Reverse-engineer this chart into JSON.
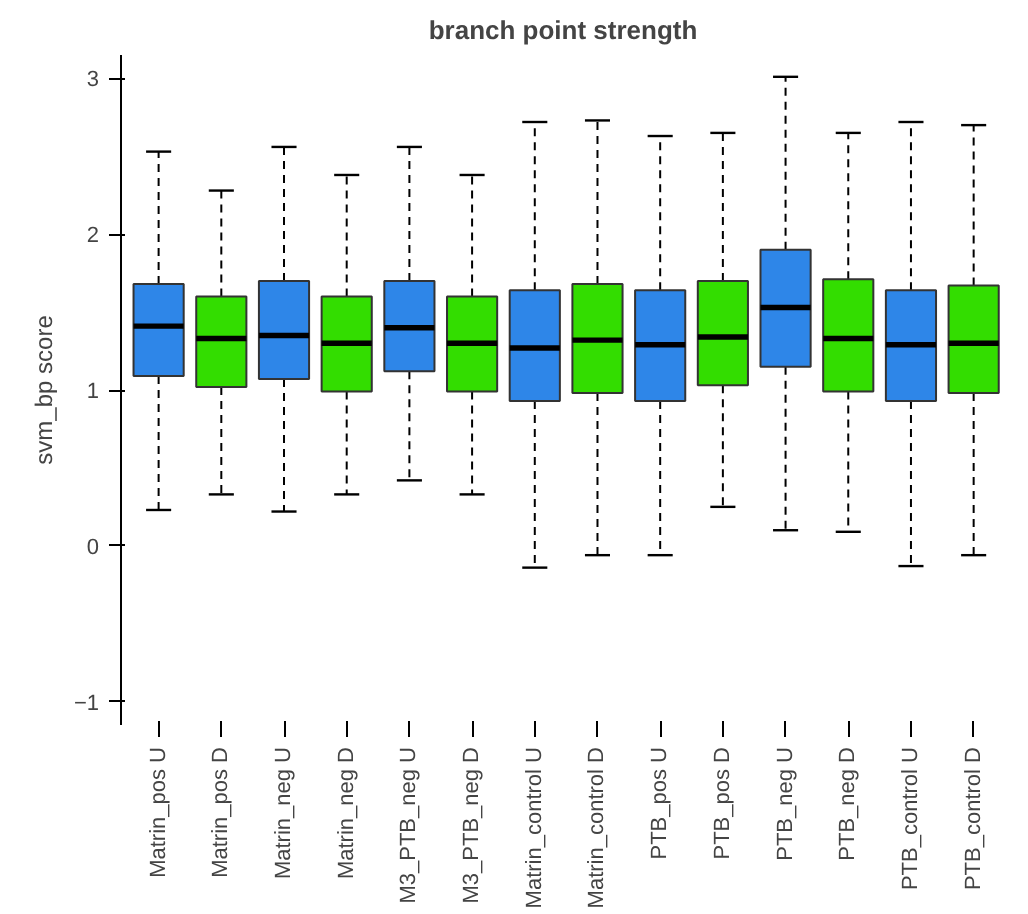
{
  "chart_data": {
    "type": "box",
    "title": "branch point strength",
    "ylabel": "svm_bp score",
    "categories": [
      "Matrin_pos U",
      "Matrin_pos D",
      "Matrin_neg U",
      "Matrin_neg D",
      "M3_PTB_neg U",
      "M3_PTB_neg D",
      "Matrin_control U",
      "Matrin_control D",
      "PTB_pos U",
      "PTB_pos D",
      "PTB_neg U",
      "PTB_neg D",
      "PTB_control U",
      "PTB_control D"
    ],
    "colors": [
      "#2e86e8",
      "#33dd00",
      "#2e86e8",
      "#33dd00",
      "#2e86e8",
      "#33dd00",
      "#2e86e8",
      "#33dd00",
      "#2e86e8",
      "#33dd00",
      "#2e86e8",
      "#33dd00",
      "#2e86e8",
      "#33dd00"
    ],
    "boxes": [
      {
        "low": 0.23,
        "q1": 1.09,
        "median": 1.41,
        "q3": 1.68,
        "high": 2.53
      },
      {
        "low": 0.33,
        "q1": 1.02,
        "median": 1.33,
        "q3": 1.6,
        "high": 2.28
      },
      {
        "low": 0.22,
        "q1": 1.07,
        "median": 1.35,
        "q3": 1.7,
        "high": 2.56
      },
      {
        "low": 0.33,
        "q1": 0.99,
        "median": 1.3,
        "q3": 1.6,
        "high": 2.38
      },
      {
        "low": 0.42,
        "q1": 1.12,
        "median": 1.4,
        "q3": 1.7,
        "high": 2.56
      },
      {
        "low": 0.33,
        "q1": 0.99,
        "median": 1.3,
        "q3": 1.6,
        "high": 2.38
      },
      {
        "low": -0.14,
        "q1": 0.93,
        "median": 1.27,
        "q3": 1.64,
        "high": 2.72
      },
      {
        "low": -0.06,
        "q1": 0.98,
        "median": 1.32,
        "q3": 1.68,
        "high": 2.73
      },
      {
        "low": -0.06,
        "q1": 0.93,
        "median": 1.29,
        "q3": 1.64,
        "high": 2.63
      },
      {
        "low": 0.25,
        "q1": 1.03,
        "median": 1.34,
        "q3": 1.7,
        "high": 2.65
      },
      {
        "low": 0.1,
        "q1": 1.15,
        "median": 1.53,
        "q3": 1.9,
        "high": 3.01
      },
      {
        "low": 0.09,
        "q1": 0.99,
        "median": 1.33,
        "q3": 1.71,
        "high": 2.65
      },
      {
        "low": -0.13,
        "q1": 0.93,
        "median": 1.29,
        "q3": 1.64,
        "high": 2.72
      },
      {
        "low": -0.06,
        "q1": 0.98,
        "median": 1.3,
        "q3": 1.67,
        "high": 2.7
      }
    ],
    "ylim": [
      -1.15,
      3.15
    ],
    "yticks": [
      -1,
      0,
      1,
      2,
      3
    ],
    "grid": false
  }
}
